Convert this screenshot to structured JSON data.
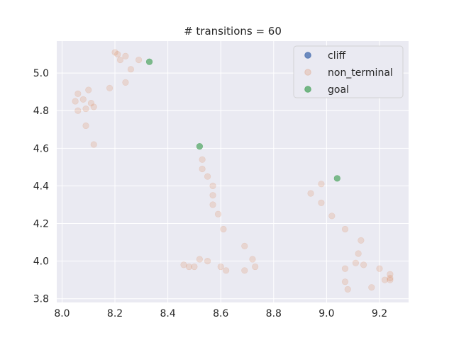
{
  "chart_data": {
    "type": "scatter",
    "title": "# transitions = 60",
    "xlabel": "",
    "ylabel": "",
    "xlim": [
      7.98,
      9.31
    ],
    "ylim": [
      3.78,
      5.17
    ],
    "xticks": [
      "8.0",
      "8.2",
      "8.4",
      "8.6",
      "8.8",
      "9.0",
      "9.2"
    ],
    "yticks": [
      "3.8",
      "4.0",
      "4.2",
      "4.4",
      "4.6",
      "4.8",
      "5.0"
    ],
    "grid": true,
    "legend_position": "top-right",
    "series": [
      {
        "name": "cliff",
        "color": "#4c72b0",
        "points": []
      },
      {
        "name": "non_terminal",
        "color": "#dd8452",
        "points": [
          [
            8.2,
            5.11
          ],
          [
            8.21,
            5.1
          ],
          [
            8.24,
            5.09
          ],
          [
            8.22,
            5.07
          ],
          [
            8.29,
            5.07
          ],
          [
            8.26,
            5.02
          ],
          [
            8.24,
            4.95
          ],
          [
            8.18,
            4.92
          ],
          [
            8.1,
            4.91
          ],
          [
            8.06,
            4.89
          ],
          [
            8.05,
            4.85
          ],
          [
            8.08,
            4.86
          ],
          [
            8.11,
            4.84
          ],
          [
            8.12,
            4.82
          ],
          [
            8.09,
            4.81
          ],
          [
            8.06,
            4.8
          ],
          [
            8.09,
            4.72
          ],
          [
            8.12,
            4.62
          ],
          [
            8.53,
            4.54
          ],
          [
            8.53,
            4.49
          ],
          [
            8.55,
            4.45
          ],
          [
            8.57,
            4.4
          ],
          [
            8.57,
            4.35
          ],
          [
            8.57,
            4.3
          ],
          [
            8.59,
            4.25
          ],
          [
            8.61,
            4.17
          ],
          [
            8.69,
            4.08
          ],
          [
            8.72,
            4.01
          ],
          [
            8.73,
            3.97
          ],
          [
            8.69,
            3.95
          ],
          [
            8.62,
            3.95
          ],
          [
            8.6,
            3.97
          ],
          [
            8.55,
            4.0
          ],
          [
            8.52,
            4.01
          ],
          [
            8.5,
            3.97
          ],
          [
            8.48,
            3.97
          ],
          [
            8.46,
            3.98
          ],
          [
            8.98,
            4.41
          ],
          [
            8.94,
            4.36
          ],
          [
            8.98,
            4.31
          ],
          [
            9.02,
            4.24
          ],
          [
            9.07,
            4.17
          ],
          [
            9.13,
            4.11
          ],
          [
            9.12,
            4.04
          ],
          [
            9.11,
            3.99
          ],
          [
            9.14,
            3.98
          ],
          [
            9.07,
            3.96
          ],
          [
            9.2,
            3.96
          ],
          [
            9.24,
            3.93
          ],
          [
            9.24,
            3.91
          ],
          [
            9.22,
            3.9
          ],
          [
            9.24,
            3.9
          ],
          [
            9.07,
            3.89
          ],
          [
            9.17,
            3.86
          ],
          [
            9.08,
            3.85
          ]
        ]
      },
      {
        "name": "goal",
        "color": "#55a868",
        "points": [
          [
            8.33,
            5.06
          ],
          [
            8.52,
            4.61
          ],
          [
            9.04,
            4.44
          ]
        ]
      }
    ]
  }
}
